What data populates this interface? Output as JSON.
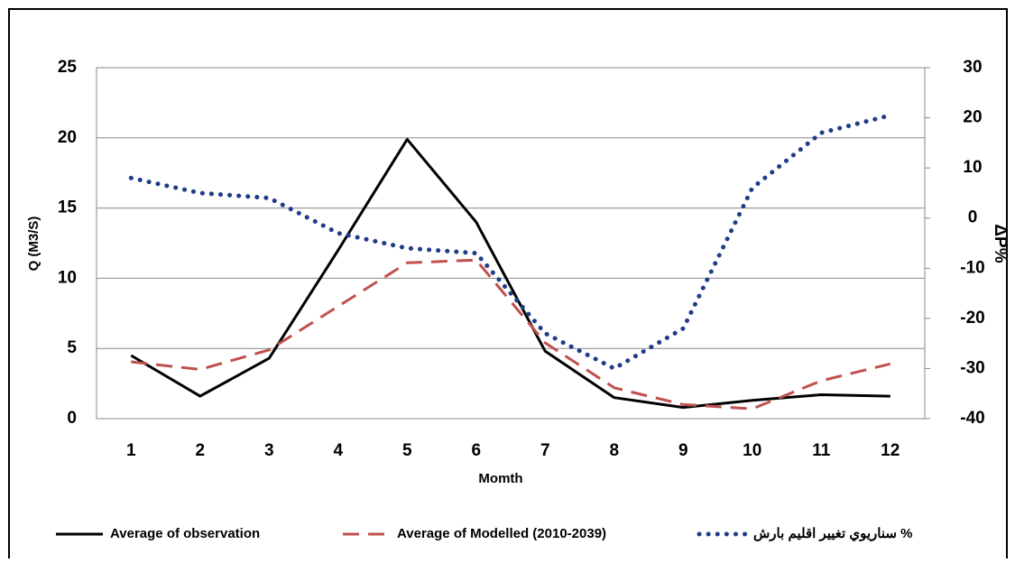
{
  "chart_data": {
    "type": "line",
    "x_label": "Momth",
    "y_label": "Q (M3/S)",
    "y2_label": "ΔP%",
    "categories": [
      1,
      2,
      3,
      4,
      5,
      6,
      7,
      8,
      9,
      10,
      11,
      12
    ],
    "series": [
      {
        "name": "Average of observation",
        "color": "#000000",
        "style": "solid",
        "values": [
          4.5,
          1.6,
          4.3,
          12,
          19.9,
          14,
          4.8,
          1.5,
          0.8,
          1.3,
          1.7,
          1.6
        ]
      },
      {
        "name": "Average of Modelled (2010-2039)",
        "color": "#c0504d",
        "style": "dashed",
        "values": [
          4.05,
          3.5,
          4.9,
          8,
          11.1,
          11.3,
          5.4,
          2.2,
          1.0,
          0.7,
          2.7,
          3.9
        ]
      },
      {
        "name": "سناريوي تغيير اقليم بارش %",
        "color": "#1f3c88",
        "style": "dotted",
        "axis": "y2",
        "values": [
          8,
          5,
          4,
          -3,
          -6,
          -7,
          -23,
          -30,
          -22,
          6,
          17,
          20.5
        ]
      }
    ],
    "ylim": [
      0,
      25
    ],
    "yticks": [
      0,
      5,
      10,
      15,
      20,
      25
    ],
    "y2lim": [
      -40,
      30
    ],
    "y2ticks": [
      -40,
      -30,
      -20,
      -10,
      0,
      10,
      20,
      30
    ],
    "grid": true,
    "legend": "bottom"
  }
}
